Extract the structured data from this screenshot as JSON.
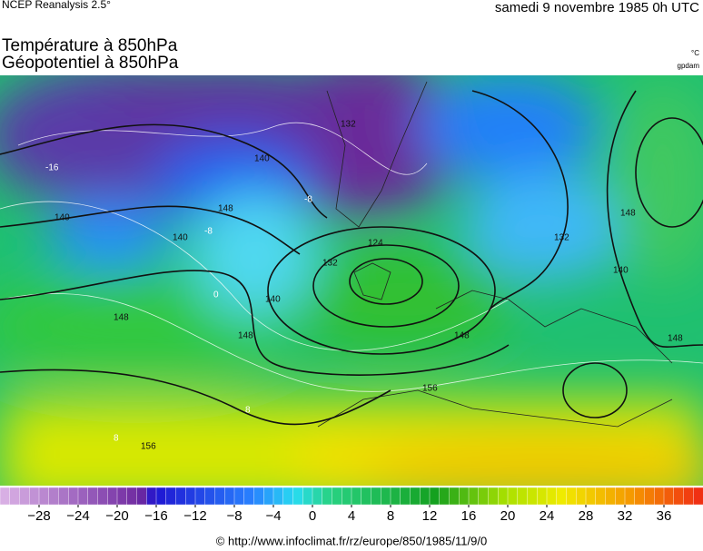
{
  "header": {
    "source": "NCEP Reanalysis 2.5°",
    "date": "samedi 9 novembre 1985 0h UTC",
    "title1": "Température à 850hPa",
    "title2": "Géopotentiel à 850hPa",
    "unit1": "°C",
    "unit2": "gpdam"
  },
  "map": {
    "contour_labels": [
      "132",
      "140",
      "148",
      "156",
      "124",
      "132",
      "140",
      "148",
      "140",
      "148",
      "132",
      "140",
      "148",
      "156",
      "148",
      "140",
      "148"
    ],
    "isotherm_labels": [
      "-16",
      "-8",
      "-8",
      "8",
      "8",
      "0"
    ]
  },
  "colorbar": {
    "range": [
      -32,
      40
    ],
    "step": 1,
    "ticks": [
      {
        "value": -28,
        "label": "−28"
      },
      {
        "value": -24,
        "label": "−24"
      },
      {
        "value": -20,
        "label": "−20"
      },
      {
        "value": -16,
        "label": "−16"
      },
      {
        "value": -12,
        "label": "−12"
      },
      {
        "value": -8,
        "label": "−8"
      },
      {
        "value": -4,
        "label": "−4"
      },
      0,
      4,
      8,
      12,
      16,
      20,
      24,
      28,
      32,
      36
    ]
  },
  "footer": "© http://www.infoclimat.fr/rz/europe/850/1985/11/9/0"
}
